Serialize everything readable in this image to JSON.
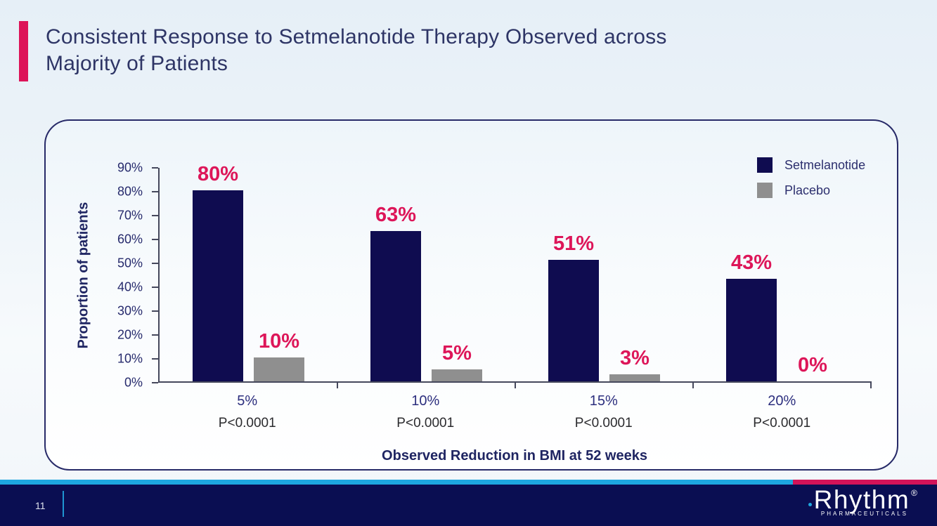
{
  "slide": {
    "title_lines": [
      "Consistent Response to Setmelanotide Therapy Observed across",
      "Majority of Patients"
    ],
    "page_number": "11"
  },
  "footer": {
    "logo_brand": "Rhythm",
    "logo_registered": "®",
    "logo_subtext": "PHARMACEUTICALS"
  },
  "colors": {
    "accent_pink": "#dd1458",
    "title_navy": "#2e3566",
    "stripe_cyan": "#1ea7e0",
    "stripe_pink": "#d31359",
    "footer_navy": "#0a0e52"
  },
  "chart_data": {
    "type": "bar",
    "categories": [
      "5%",
      "10%",
      "15%",
      "20%"
    ],
    "category_sub_labels": [
      "P<0.0001",
      "P<0.0001",
      "P<0.0001",
      "P<0.0001"
    ],
    "series": [
      {
        "name": "Setmelanotide",
        "color": "#0f0c50",
        "values": [
          80,
          63,
          51,
          43
        ],
        "labels": [
          "80%",
          "63%",
          "51%",
          "43%"
        ]
      },
      {
        "name": "Placebo",
        "color": "#8f8f8f",
        "values": [
          10,
          5,
          3,
          0
        ],
        "labels": [
          "10%",
          "5%",
          "3%",
          "0%"
        ]
      }
    ],
    "value_label_color": "#dd1659",
    "ylabel": "Proportion of patients",
    "xlabel": "Observed Reduction in BMI at 52 weeks",
    "ylim": [
      0,
      90
    ],
    "ytick_step": 10,
    "ytick_labels": [
      "0%",
      "10%",
      "20%",
      "30%",
      "40%",
      "50%",
      "60%",
      "70%",
      "80%",
      "90%"
    ],
    "legend_position": "top-right",
    "grid": false
  }
}
